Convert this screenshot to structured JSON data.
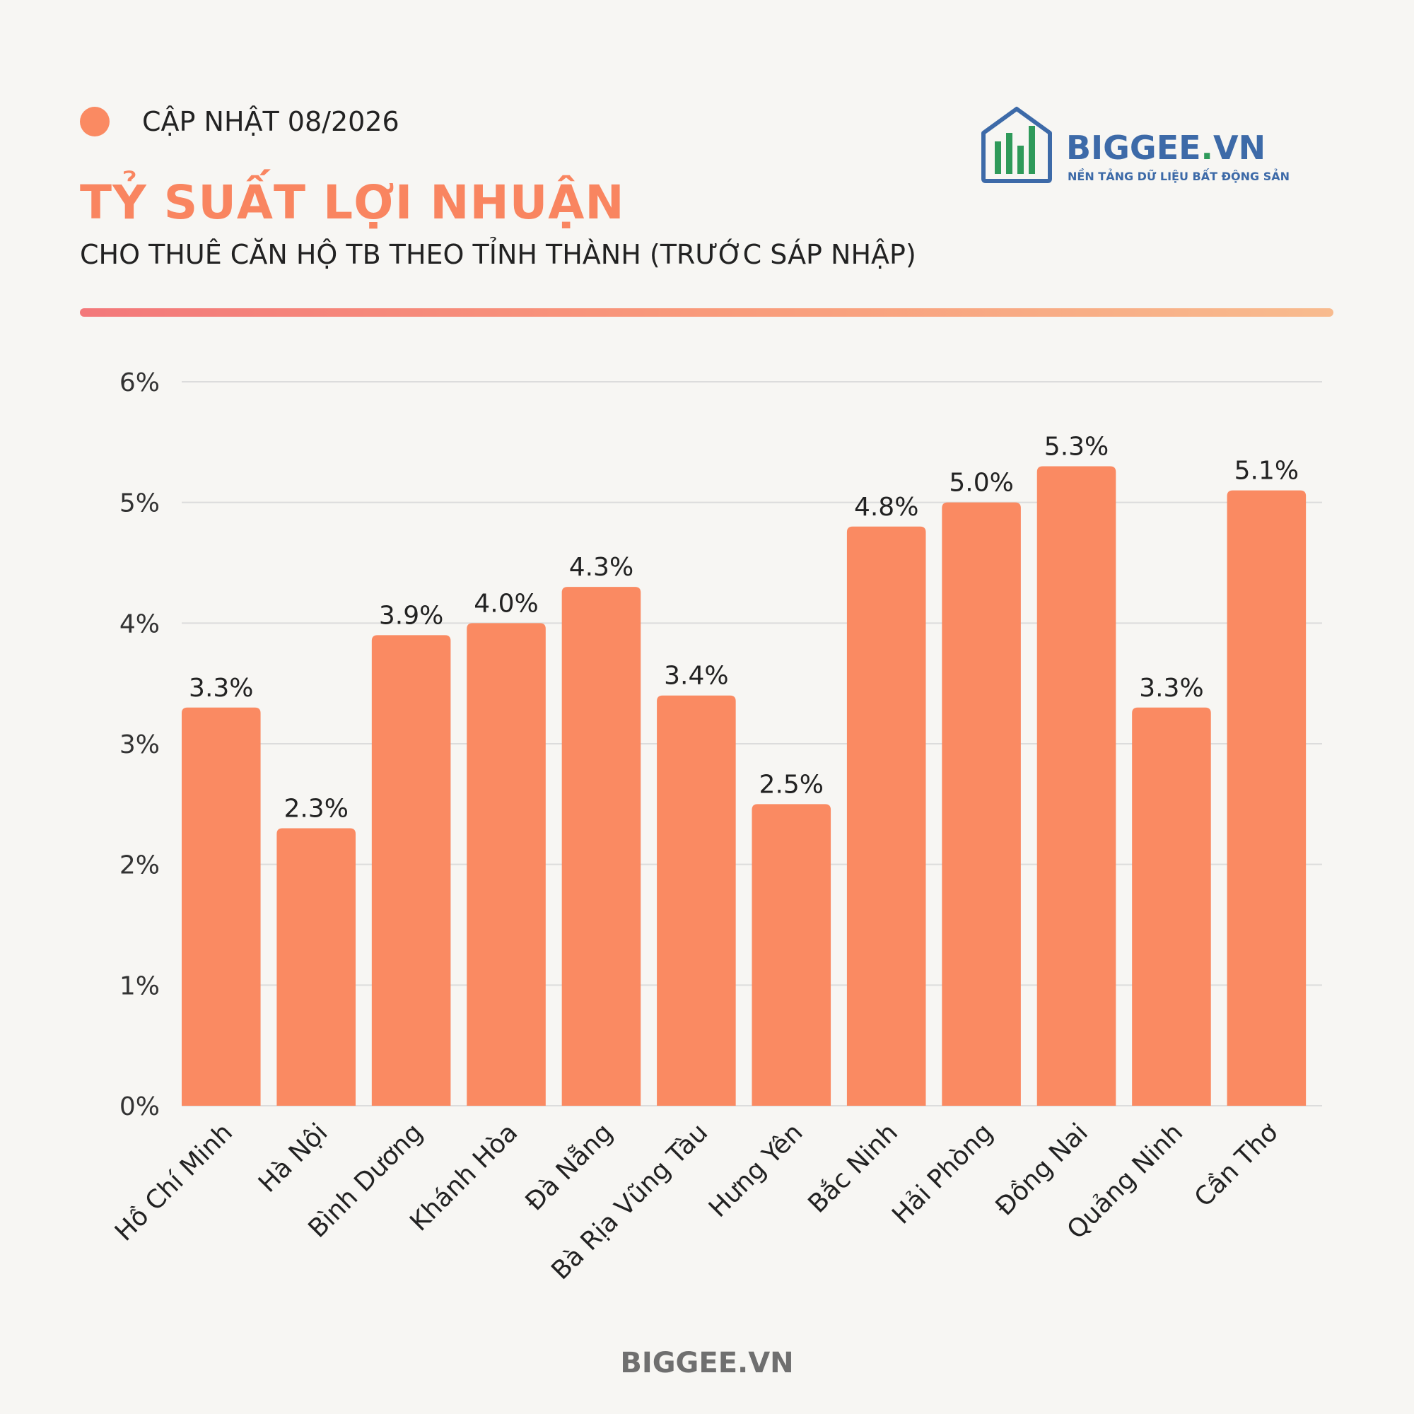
{
  "header": {
    "update_label": "CẬP NHẬT 08/2026",
    "title": "TỶ SUẤT LỢI NHUẬN",
    "subtitle": "CHO THUÊ CĂN HỘ TB THEO TỈNH THÀNH (TRƯỚC SÁP NHẬP)"
  },
  "logo": {
    "name_main": "BIGGEE",
    "name_dot": ".",
    "name_end": "VN",
    "tagline": "NỀN TẢNG DỮ LIỆU BẤT ĐỘNG SẢN",
    "icon": "house-bar-chart-icon"
  },
  "footer": {
    "text": "BIGGEE.VN"
  },
  "colors": {
    "accent": "#fa8a62",
    "bar": "#fa8a62",
    "title": "#f98560",
    "logo_blue": "#3d6aa8",
    "logo_green": "#2f9a5a"
  },
  "chart_data": {
    "type": "bar",
    "title": "",
    "xlabel": "",
    "ylabel": "",
    "ylim": [
      0,
      6
    ],
    "yticks": [
      0,
      1,
      2,
      3,
      4,
      5,
      6
    ],
    "ytick_suffix": "%",
    "grid": true,
    "categories": [
      "Hồ Chí Minh",
      "Hà Nội",
      "Bình Dương",
      "Khánh Hòa",
      "Đà Nẵng",
      "Bà Rịa Vũng Tàu",
      "Hưng Yên",
      "Bắc Ninh",
      "Hải Phòng",
      "Đồng Nai",
      "Quảng Ninh",
      "Cần Thơ"
    ],
    "values": [
      3.3,
      2.3,
      3.9,
      4.0,
      4.3,
      3.4,
      2.5,
      4.8,
      5.0,
      5.3,
      3.3,
      5.1
    ],
    "value_labels": [
      "3.3%",
      "2.3%",
      "3.9%",
      "4.0%",
      "4.3%",
      "3.4%",
      "2.5%",
      "4.8%",
      "5.0%",
      "5.3%",
      "3.3%",
      "5.1%"
    ]
  }
}
